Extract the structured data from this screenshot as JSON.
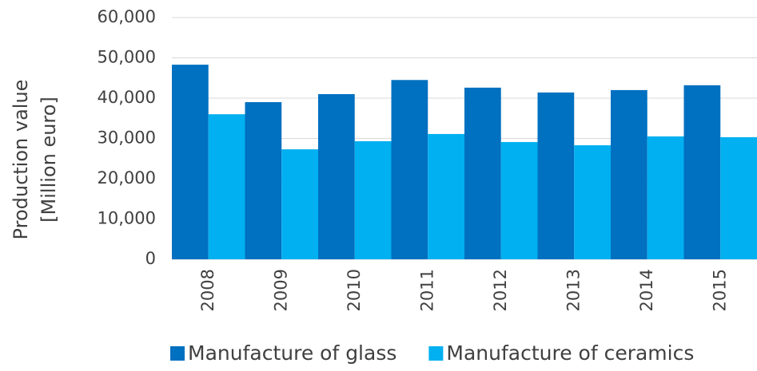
{
  "chart_data": {
    "type": "bar",
    "y_label": [
      "Production value",
      "[Million euro]"
    ],
    "categories": [
      "2008",
      "2009",
      "2010",
      "2011",
      "2012",
      "2013",
      "2014",
      "2015"
    ],
    "series": [
      {
        "name": "Manufacture of glass",
        "color": "#0070c0",
        "values": [
          48300,
          39000,
          41000,
          44500,
          42600,
          41400,
          42000,
          43200
        ]
      },
      {
        "name": "Manufacture of ceramics",
        "color": "#00b0f0",
        "values": [
          36000,
          27300,
          29300,
          31100,
          29100,
          28300,
          30500,
          30300
        ]
      }
    ],
    "ylim": [
      0,
      60000
    ],
    "yticks": [
      0,
      {
        "value": 10000,
        "label": "10,000"
      },
      {
        "value": 20000,
        "label": "20,000"
      },
      {
        "value": 30000,
        "label": "30,000"
      },
      {
        "value": 40000,
        "label": "40,000"
      },
      {
        "value": 50000,
        "label": "50,000"
      },
      {
        "value": 60000,
        "label": "60,000"
      }
    ],
    "grid": true
  }
}
